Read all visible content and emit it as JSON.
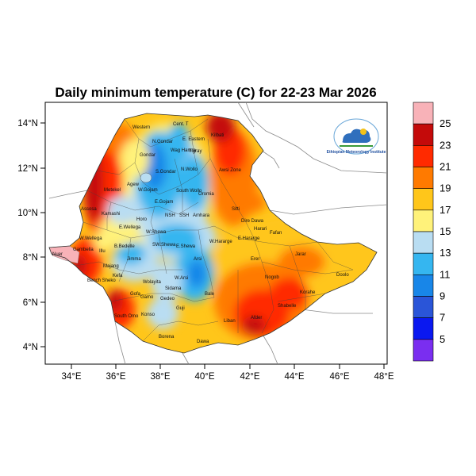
{
  "title": "Daily minimum temperature (C) for 22-23 Mar 2026",
  "axes": {
    "lon_ticks": [
      "34°E",
      "36°E",
      "38°E",
      "40°E",
      "42°E",
      "44°E",
      "46°E",
      "48°E"
    ],
    "lat_ticks": [
      "14°N",
      "12°N",
      "10°N",
      "8°N",
      "6°N",
      "4°N"
    ]
  },
  "colorbar": {
    "labels": [
      "25",
      "23",
      "21",
      "19",
      "17",
      "15",
      "13",
      "11",
      "9",
      "7",
      "5"
    ],
    "colors": [
      "#f8b2b8",
      "#c40a0a",
      "#ff2a00",
      "#ff7a00",
      "#ffc61a",
      "#fff27a",
      "#b9ddf2",
      "#35b6f0",
      "#1886e8",
      "#2a55d8",
      "#0a18f0",
      "#7a2ef0"
    ]
  },
  "regions": [
    "Western",
    "Cent. T",
    "E. Eastern",
    "Kilbati",
    "N.Gondar",
    "Wag Hamra",
    "Tigray",
    "Gondar",
    "S.Gondar",
    "N.Wollo",
    "Awsi Zone",
    "Agew",
    "W.Gojam",
    "South Wollo",
    "Metekel",
    "E.Gojam",
    "Oromia",
    "Sitti",
    "Assosa",
    "Kamashi",
    "Horo",
    "NSH",
    "SSH",
    "Amhara",
    "Dire Dawa",
    "Harari",
    "Fafan",
    "W.Wellega",
    "E.Wellega",
    "W.Shewa",
    "W.Hararge",
    "E.Hararge",
    "Nuer",
    "B.Bedelle",
    "Jimma",
    "SW.Shewa",
    "E.Shewa",
    "Arsi",
    "Erer",
    "Jarar",
    "Nogob",
    "Doolo",
    "Korahe",
    "Kefa",
    "Bench Sheko",
    "Wolayita",
    "W.Arsi",
    "Bale",
    "Shabelle",
    "Sidama",
    "South Omo",
    "Gofa",
    "Gamo",
    "Gedeo",
    "Guji",
    "Liban",
    "Afder",
    "Borena",
    "Dawa",
    "Konso",
    "Majang",
    "Illu",
    "Gambella"
  ],
  "logo": {
    "text": "Ethiopian Meteorology Institute"
  },
  "legend_scale_note": ""
}
